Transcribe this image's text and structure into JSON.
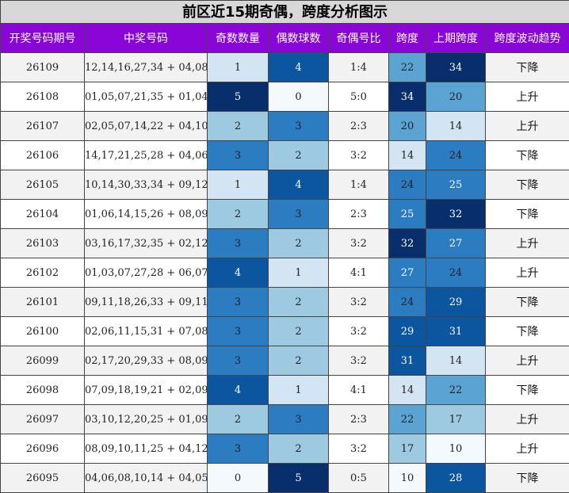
{
  "title": "前区近15期奇偶，跨度分析图示",
  "headers": [
    "开奖号码期号",
    "中奖号码",
    "奇数数量",
    "偶数球数",
    "奇偶号比",
    "跨度",
    "上期跨度",
    "跨度波动趋势"
  ],
  "colors": {
    "title_bg": "#d8d8d8",
    "header_bg": "#8a06d6",
    "header_text": "#ffffff",
    "scale": [
      "#f4f9fe",
      "#d3e5f3",
      "#9ecae1",
      "#5aa3d3",
      "#2b7cc0",
      "#0c56a0",
      "#082f6c"
    ]
  },
  "rows": [
    {
      "period": "26109",
      "numbers": "12,14,16,27,34 + 04,08",
      "odd": 1,
      "even": 4,
      "ratio": "1:4",
      "span": 22,
      "prev_span": 34,
      "trend": "下降"
    },
    {
      "period": "26108",
      "numbers": "01,05,07,21,35 + 01,04",
      "odd": 5,
      "even": 0,
      "ratio": "5:0",
      "span": 34,
      "prev_span": 20,
      "trend": "上升"
    },
    {
      "period": "26107",
      "numbers": "02,05,07,14,22 + 04,10",
      "odd": 2,
      "even": 3,
      "ratio": "2:3",
      "span": 20,
      "prev_span": 14,
      "trend": "上升"
    },
    {
      "period": "26106",
      "numbers": "14,17,21,25,28 + 04,06",
      "odd": 3,
      "even": 2,
      "ratio": "3:2",
      "span": 14,
      "prev_span": 24,
      "trend": "下降"
    },
    {
      "period": "26105",
      "numbers": "10,14,30,33,34 + 09,12",
      "odd": 1,
      "even": 4,
      "ratio": "1:4",
      "span": 24,
      "prev_span": 25,
      "trend": "下降"
    },
    {
      "period": "26104",
      "numbers": "01,06,14,15,26 + 08,09",
      "odd": 2,
      "even": 3,
      "ratio": "2:3",
      "span": 25,
      "prev_span": 32,
      "trend": "下降"
    },
    {
      "period": "26103",
      "numbers": "03,16,17,32,35 + 02,12",
      "odd": 3,
      "even": 2,
      "ratio": "3:2",
      "span": 32,
      "prev_span": 27,
      "trend": "上升"
    },
    {
      "period": "26102",
      "numbers": "01,03,07,27,28 + 06,07",
      "odd": 4,
      "even": 1,
      "ratio": "4:1",
      "span": 27,
      "prev_span": 24,
      "trend": "上升"
    },
    {
      "period": "26101",
      "numbers": "09,11,18,26,33 + 09,11",
      "odd": 3,
      "even": 2,
      "ratio": "3:2",
      "span": 24,
      "prev_span": 29,
      "trend": "下降"
    },
    {
      "period": "26100",
      "numbers": "02,06,11,15,31 + 07,08",
      "odd": 3,
      "even": 2,
      "ratio": "3:2",
      "span": 29,
      "prev_span": 31,
      "trend": "下降"
    },
    {
      "period": "26099",
      "numbers": "02,17,20,29,33 + 08,09",
      "odd": 3,
      "even": 2,
      "ratio": "3:2",
      "span": 31,
      "prev_span": 14,
      "trend": "上升"
    },
    {
      "period": "26098",
      "numbers": "07,09,18,19,21 + 02,09",
      "odd": 4,
      "even": 1,
      "ratio": "4:1",
      "span": 14,
      "prev_span": 22,
      "trend": "下降"
    },
    {
      "period": "26097",
      "numbers": "03,10,12,20,25 + 01,09",
      "odd": 2,
      "even": 3,
      "ratio": "2:3",
      "span": 22,
      "prev_span": 17,
      "trend": "上升"
    },
    {
      "period": "26096",
      "numbers": "08,09,10,11,25 + 04,12",
      "odd": 3,
      "even": 2,
      "ratio": "3:2",
      "span": 17,
      "prev_span": 10,
      "trend": "上升"
    },
    {
      "period": "26095",
      "numbers": "04,06,08,10,14 + 04,05",
      "odd": 0,
      "even": 5,
      "ratio": "0:5",
      "span": 10,
      "prev_span": 28,
      "trend": "下降"
    }
  ]
}
